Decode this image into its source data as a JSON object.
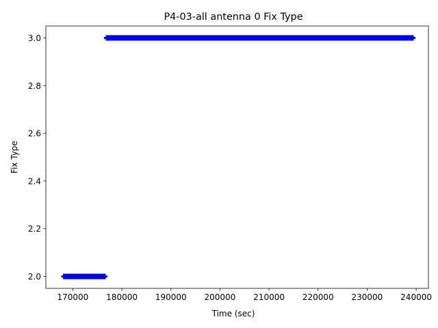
{
  "chart_data": {
    "type": "scatter",
    "title": "P4-03-all antenna 0 Fix Type",
    "xlabel": "Time (sec)",
    "ylabel": "Fix Type",
    "xlim": [
      164500,
      242500
    ],
    "ylim": [
      1.95,
      3.05
    ],
    "xticks": [
      170000,
      180000,
      190000,
      200000,
      210000,
      220000,
      230000,
      240000
    ],
    "yticks": [
      2.0,
      2.2,
      2.4,
      2.6,
      2.8,
      3.0
    ],
    "xtick_labels": [
      "170000",
      "180000",
      "190000",
      "200000",
      "210000",
      "220000",
      "230000",
      "240000"
    ],
    "ytick_labels": [
      "2.0",
      "2.2",
      "2.4",
      "2.6",
      "2.8",
      "3.0"
    ],
    "grid": false,
    "marker": "|",
    "series": [
      {
        "color": "#0000ff",
        "segments": [
          {
            "x_start": 168000,
            "x_end": 176700,
            "y": 2.0
          },
          {
            "x_start": 176700,
            "x_end": 239500,
            "y": 3.0
          }
        ]
      }
    ]
  }
}
